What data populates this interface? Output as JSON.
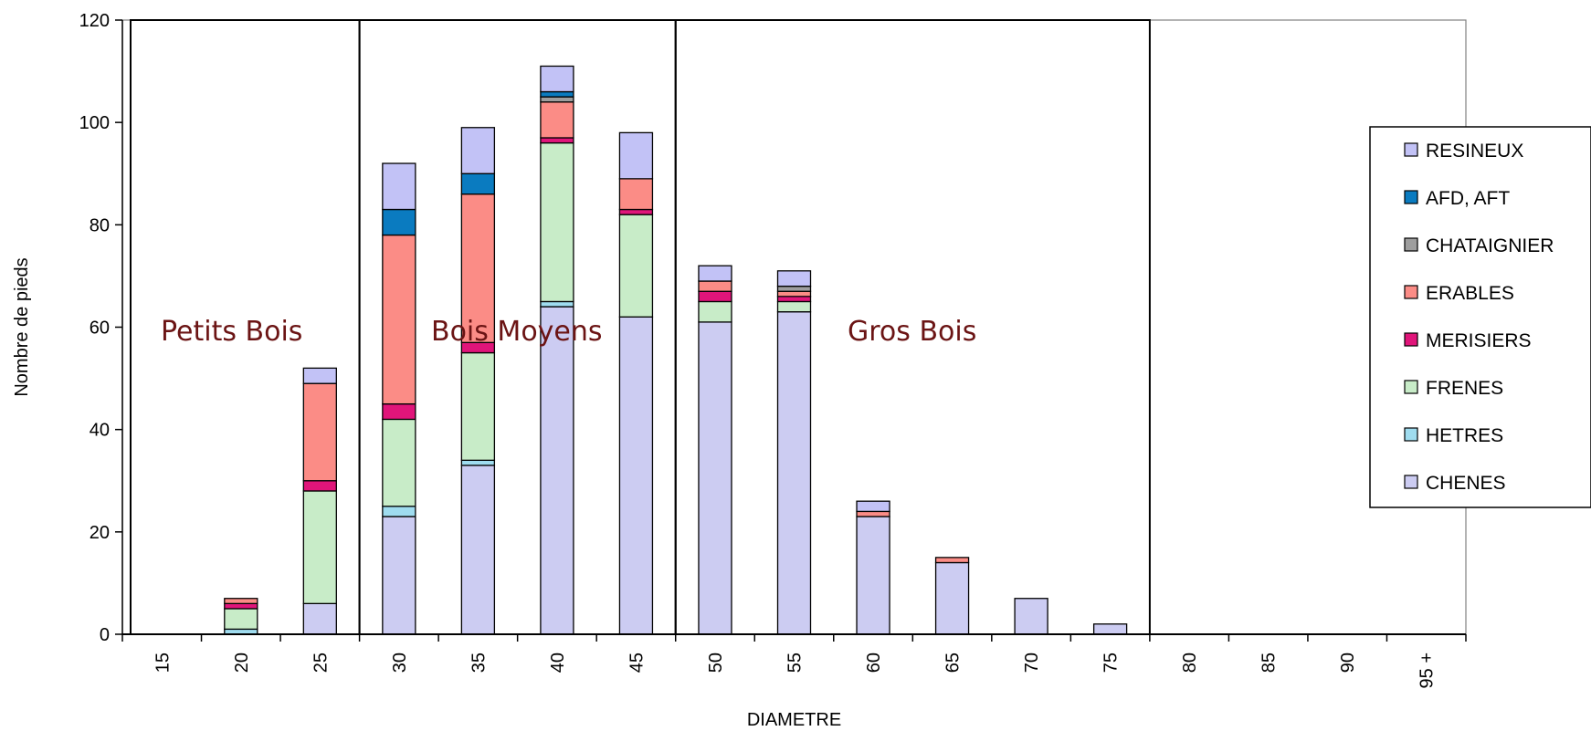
{
  "chart_data": {
    "type": "bar",
    "stacked": true,
    "xlabel": "DIAMETRE",
    "ylabel": "Nombre de pieds",
    "ylim": [
      0,
      120
    ],
    "yticks": [
      0,
      20,
      40,
      60,
      80,
      100,
      120
    ],
    "grid": false,
    "legend_position": "right",
    "categories": [
      "15",
      "20",
      "25",
      "30",
      "35",
      "40",
      "45",
      "50",
      "55",
      "60",
      "65",
      "70",
      "75",
      "80",
      "85",
      "90",
      "95 +"
    ],
    "series": [
      {
        "name": "CHENES",
        "color": "#ccccf2",
        "values": [
          0,
          0,
          6,
          23,
          33,
          64,
          62,
          61,
          63,
          23,
          14,
          7,
          2,
          0,
          0,
          0,
          0
        ]
      },
      {
        "name": "HETRES",
        "color": "#9fdcef",
        "values": [
          0,
          1,
          0,
          2,
          1,
          1,
          0,
          0,
          0,
          0,
          0,
          0,
          0,
          0,
          0,
          0,
          0
        ]
      },
      {
        "name": "FRENES",
        "color": "#c8ecc8",
        "values": [
          0,
          4,
          22,
          17,
          21,
          31,
          20,
          4,
          2,
          0,
          0,
          0,
          0,
          0,
          0,
          0,
          0
        ]
      },
      {
        "name": "MERISIERS",
        "color": "#e0157a",
        "values": [
          0,
          1,
          2,
          3,
          2,
          1,
          1,
          2,
          1,
          0,
          0,
          0,
          0,
          0,
          0,
          0,
          0
        ]
      },
      {
        "name": "ERABLES",
        "color": "#fb8c86",
        "values": [
          0,
          1,
          19,
          33,
          29,
          7,
          6,
          2,
          1,
          1,
          1,
          0,
          0,
          0,
          0,
          0,
          0
        ]
      },
      {
        "name": "CHATAIGNIER",
        "color": "#9e9e9e",
        "values": [
          0,
          0,
          0,
          0,
          0,
          1,
          0,
          0,
          1,
          0,
          0,
          0,
          0,
          0,
          0,
          0,
          0
        ]
      },
      {
        "name": "AFD, AFT",
        "color": "#0a7bc0",
        "values": [
          0,
          0,
          0,
          5,
          4,
          1,
          0,
          0,
          0,
          0,
          0,
          0,
          0,
          0,
          0,
          0,
          0
        ]
      },
      {
        "name": "RESINEUX",
        "color": "#c2c2f6",
        "values": [
          0,
          0,
          3,
          9,
          9,
          5,
          9,
          3,
          3,
          2,
          0,
          0,
          0,
          0,
          0,
          0,
          0
        ]
      }
    ],
    "legend_order": [
      "RESINEUX",
      "AFD, AFT",
      "CHATAIGNIER",
      "ERABLES",
      "MERISIERS",
      "FRENES",
      "HETRES",
      "CHENES"
    ],
    "zones": [
      {
        "label": "Petits Bois",
        "from": "15",
        "to": "25"
      },
      {
        "label": "Bois Moyens",
        "from": "30",
        "to": "45"
      },
      {
        "label": "Gros Bois",
        "from": "50",
        "to": "75"
      }
    ]
  }
}
